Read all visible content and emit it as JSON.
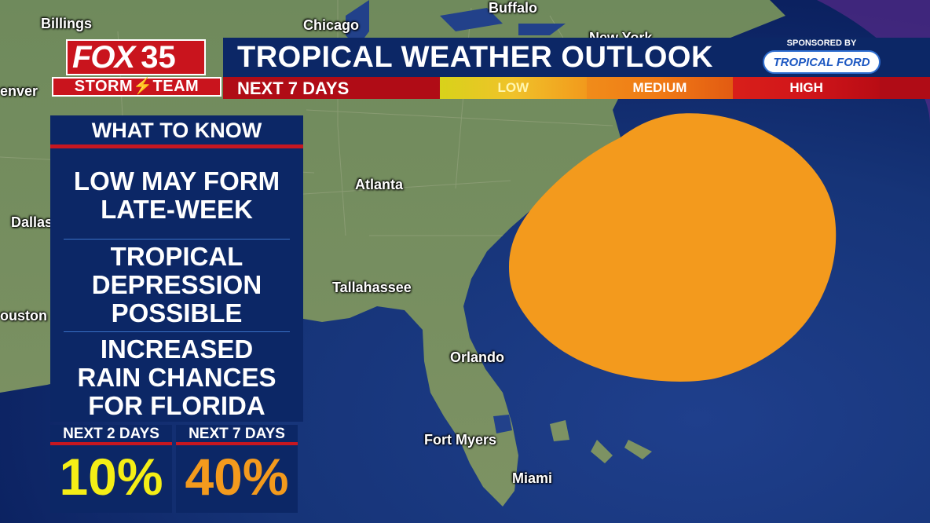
{
  "header": {
    "title": "TROPICAL WEATHER OUTLOOK",
    "subtitle": "NEXT 7 DAYS",
    "scale": [
      "LOW",
      "MEDIUM",
      "HIGH"
    ]
  },
  "logo": {
    "brand": "FOX",
    "number": "35",
    "team": "STORM⚡TEAM"
  },
  "sponsor": {
    "label": "SPONSORED BY",
    "name": "TROPICAL FORD"
  },
  "panel": {
    "heading": "WHAT TO KNOW",
    "items": [
      [
        "LOW MAY FORM",
        "LATE-WEEK"
      ],
      [
        "TROPICAL",
        "DEPRESSION",
        "POSSIBLE"
      ],
      [
        "INCREASED",
        "RAIN CHANCES",
        "FOR FLORIDA"
      ]
    ]
  },
  "stats": [
    {
      "label": "NEXT 2 DAYS",
      "value": "10%"
    },
    {
      "label": "NEXT 7 DAYS",
      "value": "40%"
    }
  ],
  "map": {
    "cities": [
      "Billings",
      "Chicago",
      "Buffalo",
      "New York",
      "enver",
      "Atlanta",
      "Dallas",
      "Tallahassee",
      "ouston",
      "Orlando",
      "Fort Myers",
      "Miami"
    ],
    "outlook_area": {
      "level": "MEDIUM",
      "color": "#f39a1d"
    }
  },
  "colors": {
    "navy": "#0c2766",
    "red": "#c71720",
    "low": "#f5ee16",
    "medium": "#f39a1d",
    "high": "#d1151a"
  }
}
